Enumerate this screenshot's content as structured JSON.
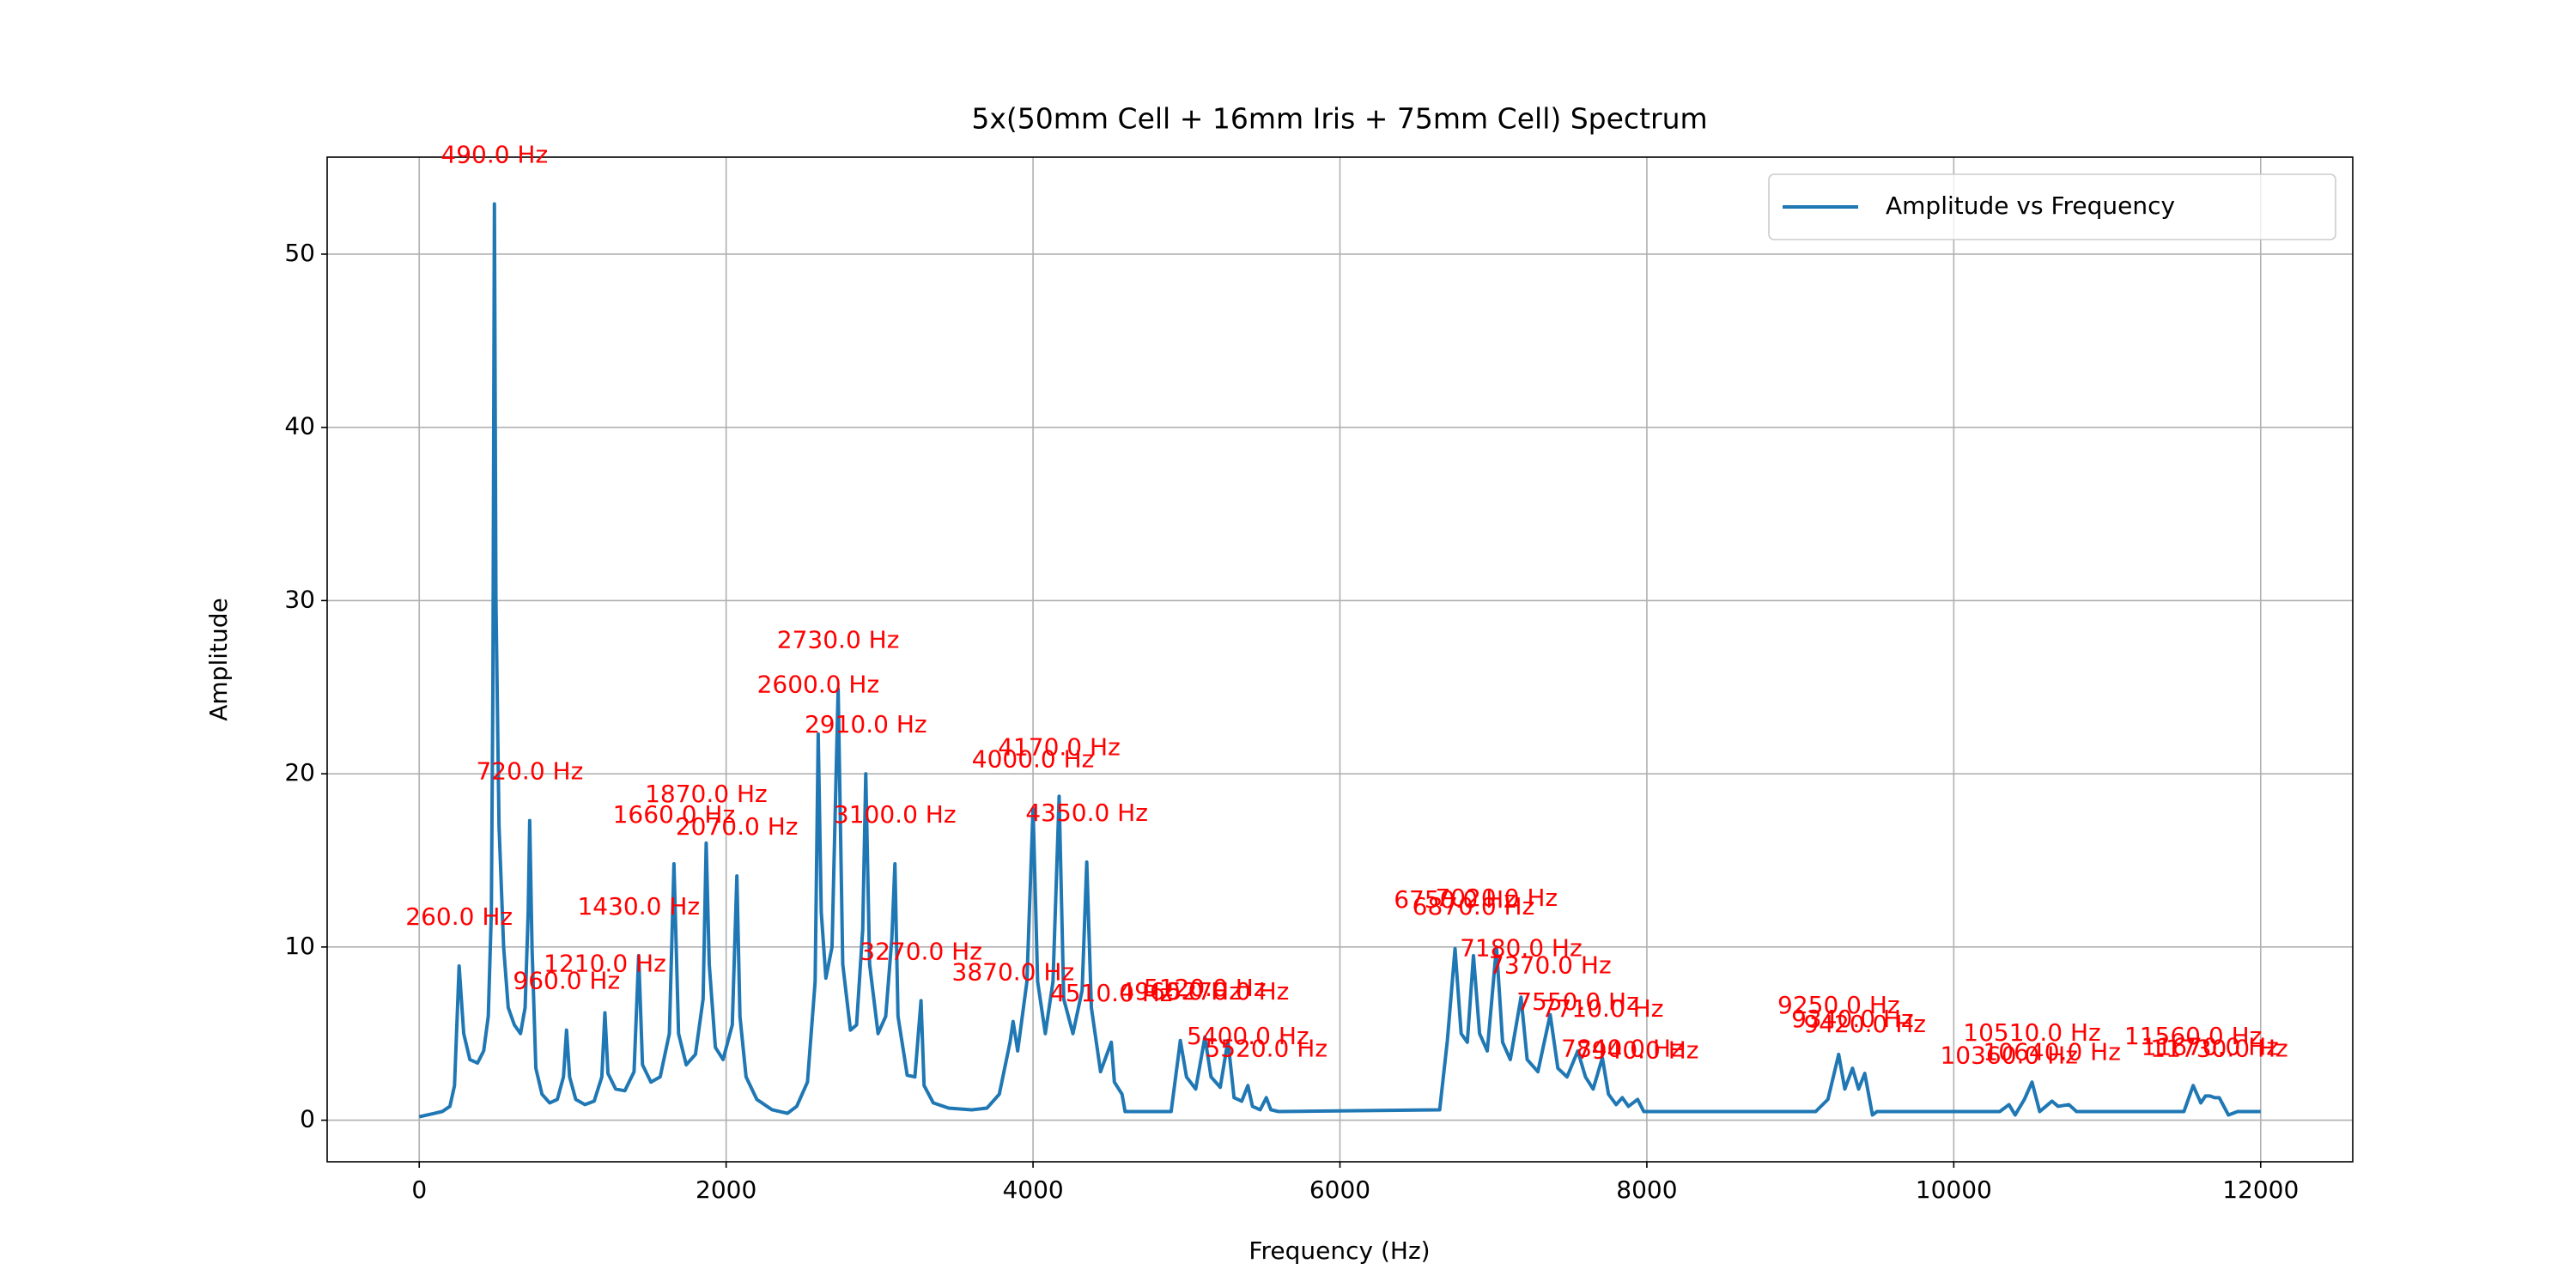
{
  "chart_data": {
    "type": "line",
    "title": "5x(50mm Cell + 16mm Iris + 75mm Cell) Spectrum",
    "xlabel": "Frequency (Hz)",
    "ylabel": "Amplitude",
    "xlim": [
      -600,
      12600
    ],
    "ylim": [
      -2.4,
      55.6
    ],
    "xticks": [
      0,
      2000,
      4000,
      6000,
      8000,
      10000,
      12000
    ],
    "yticks": [
      0,
      10,
      20,
      30,
      40,
      50
    ],
    "grid": true,
    "legend": "upper right",
    "x": [
      0,
      100,
      150,
      200,
      230,
      260,
      290,
      330,
      380,
      420,
      450,
      470,
      480,
      490,
      500,
      520,
      550,
      580,
      620,
      660,
      690,
      710,
      720,
      735,
      760,
      800,
      850,
      900,
      940,
      960,
      980,
      1020,
      1080,
      1140,
      1190,
      1210,
      1230,
      1280,
      1340,
      1400,
      1430,
      1455,
      1510,
      1570,
      1630,
      1660,
      1690,
      1740,
      1800,
      1850,
      1870,
      1890,
      1930,
      1980,
      2040,
      2070,
      2090,
      2130,
      2200,
      2300,
      2400,
      2460,
      2530,
      2580,
      2600,
      2620,
      2650,
      2690,
      2730,
      2760,
      2810,
      2850,
      2890,
      2910,
      2935,
      2990,
      3040,
      3080,
      3100,
      3120,
      3180,
      3230,
      3270,
      3290,
      3350,
      3450,
      3600,
      3700,
      3780,
      3850,
      3870,
      3900,
      3960,
      4000,
      4030,
      4080,
      4130,
      4170,
      4200,
      4260,
      4320,
      4350,
      4380,
      4440,
      4510,
      4530,
      4580,
      4600,
      4900,
      4960,
      5000,
      5060,
      5120,
      5160,
      5220,
      5270,
      5310,
      5360,
      5400,
      5430,
      5480,
      5520,
      5550,
      5600,
      6650,
      6700,
      6750,
      6790,
      6830,
      6870,
      6910,
      6960,
      7020,
      7060,
      7110,
      7180,
      7220,
      7290,
      7370,
      7420,
      7480,
      7550,
      7600,
      7650,
      7710,
      7750,
      7800,
      7840,
      7880,
      7940,
      7980,
      9100,
      9180,
      9250,
      9290,
      9340,
      9380,
      9420,
      9470,
      9500,
      10300,
      10360,
      10400,
      10460,
      10510,
      10560,
      10600,
      10640,
      10680,
      10750,
      10800,
      11500,
      11560,
      11610,
      11640,
      11670,
      11700,
      11730,
      11790,
      11850,
      12000
    ],
    "series": [
      {
        "name": "Amplitude vs Frequency",
        "color": "#1f77b4",
        "values": [
          0.2,
          0.4,
          0.5,
          0.8,
          2,
          8.9,
          5,
          3.5,
          3.3,
          4,
          6,
          12,
          25,
          52.9,
          30,
          17,
          10,
          6.5,
          5.5,
          5,
          6.5,
          12,
          17.3,
          10,
          3,
          1.5,
          1,
          1.2,
          2.5,
          5.2,
          2.5,
          1.2,
          0.9,
          1.1,
          2.5,
          6.2,
          2.7,
          1.8,
          1.7,
          2.8,
          9.5,
          3.2,
          2.2,
          2.5,
          5,
          14.8,
          5,
          3.2,
          3.8,
          7,
          16,
          9,
          4.2,
          3.5,
          5.5,
          14.1,
          6,
          2.5,
          1.2,
          0.6,
          0.4,
          0.8,
          2.2,
          8,
          22.3,
          12,
          8.2,
          10,
          24.9,
          9,
          5.2,
          5.5,
          11,
          20,
          9,
          5,
          6,
          10.5,
          14.8,
          6,
          2.6,
          2.5,
          6.9,
          2,
          1,
          0.7,
          0.6,
          0.7,
          1.5,
          4.5,
          5.7,
          4,
          8,
          18,
          8,
          5,
          8,
          18.7,
          7,
          5,
          7.5,
          14.9,
          6.5,
          2.8,
          4.5,
          2.2,
          1.5,
          0.5,
          0.5,
          4.6,
          2.5,
          1.8,
          4.8,
          2.5,
          1.9,
          4.6,
          1.3,
          1.1,
          2,
          0.8,
          0.6,
          1.3,
          0.6,
          0.5,
          0.6,
          4.6,
          9.9,
          5,
          4.5,
          9.5,
          5,
          4,
          10,
          4.5,
          3.5,
          7.1,
          3.5,
          2.8,
          6.1,
          3,
          2.5,
          4,
          2.5,
          1.8,
          3.6,
          1.5,
          0.9,
          1.3,
          0.8,
          1.2,
          0.5,
          0.5,
          1.2,
          3.8,
          1.8,
          3,
          1.8,
          2.7,
          0.3,
          0.5,
          0.5,
          0.9,
          0.3,
          1.2,
          2.2,
          0.5,
          0.8,
          1.1,
          0.8,
          0.9,
          0.5,
          0.5,
          2,
          1,
          1.4,
          1.4,
          1.3,
          1.3,
          0.3,
          0.5,
          0.5
        ]
      }
    ],
    "annotation_color": "#ff0000",
    "annotations": [
      {
        "text": "260.0 Hz",
        "x": 260,
        "y": 8.9
      },
      {
        "text": "490.0 Hz",
        "x": 490,
        "y": 52.9
      },
      {
        "text": "720.0 Hz",
        "x": 720,
        "y": 17.3
      },
      {
        "text": "960.0 Hz",
        "x": 960,
        "y": 5.2
      },
      {
        "text": "1210.0 Hz",
        "x": 1210,
        "y": 6.2
      },
      {
        "text": "1430.0 Hz",
        "x": 1430,
        "y": 9.5
      },
      {
        "text": "1660.0 Hz",
        "x": 1660,
        "y": 14.8
      },
      {
        "text": "1870.0 Hz",
        "x": 1870,
        "y": 16
      },
      {
        "text": "2070.0 Hz",
        "x": 2070,
        "y": 14.1
      },
      {
        "text": "2600.0 Hz",
        "x": 2600,
        "y": 22.3
      },
      {
        "text": "2730.0 Hz",
        "x": 2730,
        "y": 24.9
      },
      {
        "text": "2910.0 Hz",
        "x": 2910,
        "y": 20
      },
      {
        "text": "3100.0 Hz",
        "x": 3100,
        "y": 14.8
      },
      {
        "text": "3270.0 Hz",
        "x": 3270,
        "y": 6.9
      },
      {
        "text": "3870.0 Hz",
        "x": 3870,
        "y": 5.7
      },
      {
        "text": "4000.0 Hz",
        "x": 4000,
        "y": 18
      },
      {
        "text": "4170.0 Hz",
        "x": 4170,
        "y": 18.7
      },
      {
        "text": "4350.0 Hz",
        "x": 4350,
        "y": 14.9
      },
      {
        "text": "4510.0 Hz",
        "x": 4510,
        "y": 4.5
      },
      {
        "text": "4960.0 Hz",
        "x": 4960,
        "y": 4.6
      },
      {
        "text": "5120.0 Hz",
        "x": 5120,
        "y": 4.8
      },
      {
        "text": "5270.0 Hz",
        "x": 5270,
        "y": 4.6
      },
      {
        "text": "5400.0 Hz",
        "x": 5400,
        "y": 2
      },
      {
        "text": "5520.0 Hz",
        "x": 5520,
        "y": 1.3
      },
      {
        "text": "6750.0 Hz",
        "x": 6750,
        "y": 9.9
      },
      {
        "text": "6870.0 Hz",
        "x": 6870,
        "y": 9.5
      },
      {
        "text": "7020.0 Hz",
        "x": 7020,
        "y": 10
      },
      {
        "text": "7180.0 Hz",
        "x": 7180,
        "y": 7.1
      },
      {
        "text": "7370.0 Hz",
        "x": 7370,
        "y": 6.1
      },
      {
        "text": "7550.0 Hz",
        "x": 7550,
        "y": 4
      },
      {
        "text": "7710.0 Hz",
        "x": 7710,
        "y": 3.6
      },
      {
        "text": "7840.0 Hz",
        "x": 7840,
        "y": 1.3
      },
      {
        "text": "7940.0 Hz",
        "x": 7940,
        "y": 1.2
      },
      {
        "text": "9250.0 Hz",
        "x": 9250,
        "y": 3.8
      },
      {
        "text": "9340.0 Hz",
        "x": 9340,
        "y": 3
      },
      {
        "text": "9420.0 Hz",
        "x": 9420,
        "y": 2.7
      },
      {
        "text": "10360.0 Hz",
        "x": 10360,
        "y": 0.9
      },
      {
        "text": "10510.0 Hz",
        "x": 10510,
        "y": 2.2
      },
      {
        "text": "10640.0 Hz",
        "x": 10640,
        "y": 1.1
      },
      {
        "text": "11560.0 Hz",
        "x": 11560,
        "y": 2
      },
      {
        "text": "11670.0 Hz",
        "x": 11670,
        "y": 1.4
      },
      {
        "text": "11730.0 Hz",
        "x": 11730,
        "y": 1.3
      }
    ]
  }
}
